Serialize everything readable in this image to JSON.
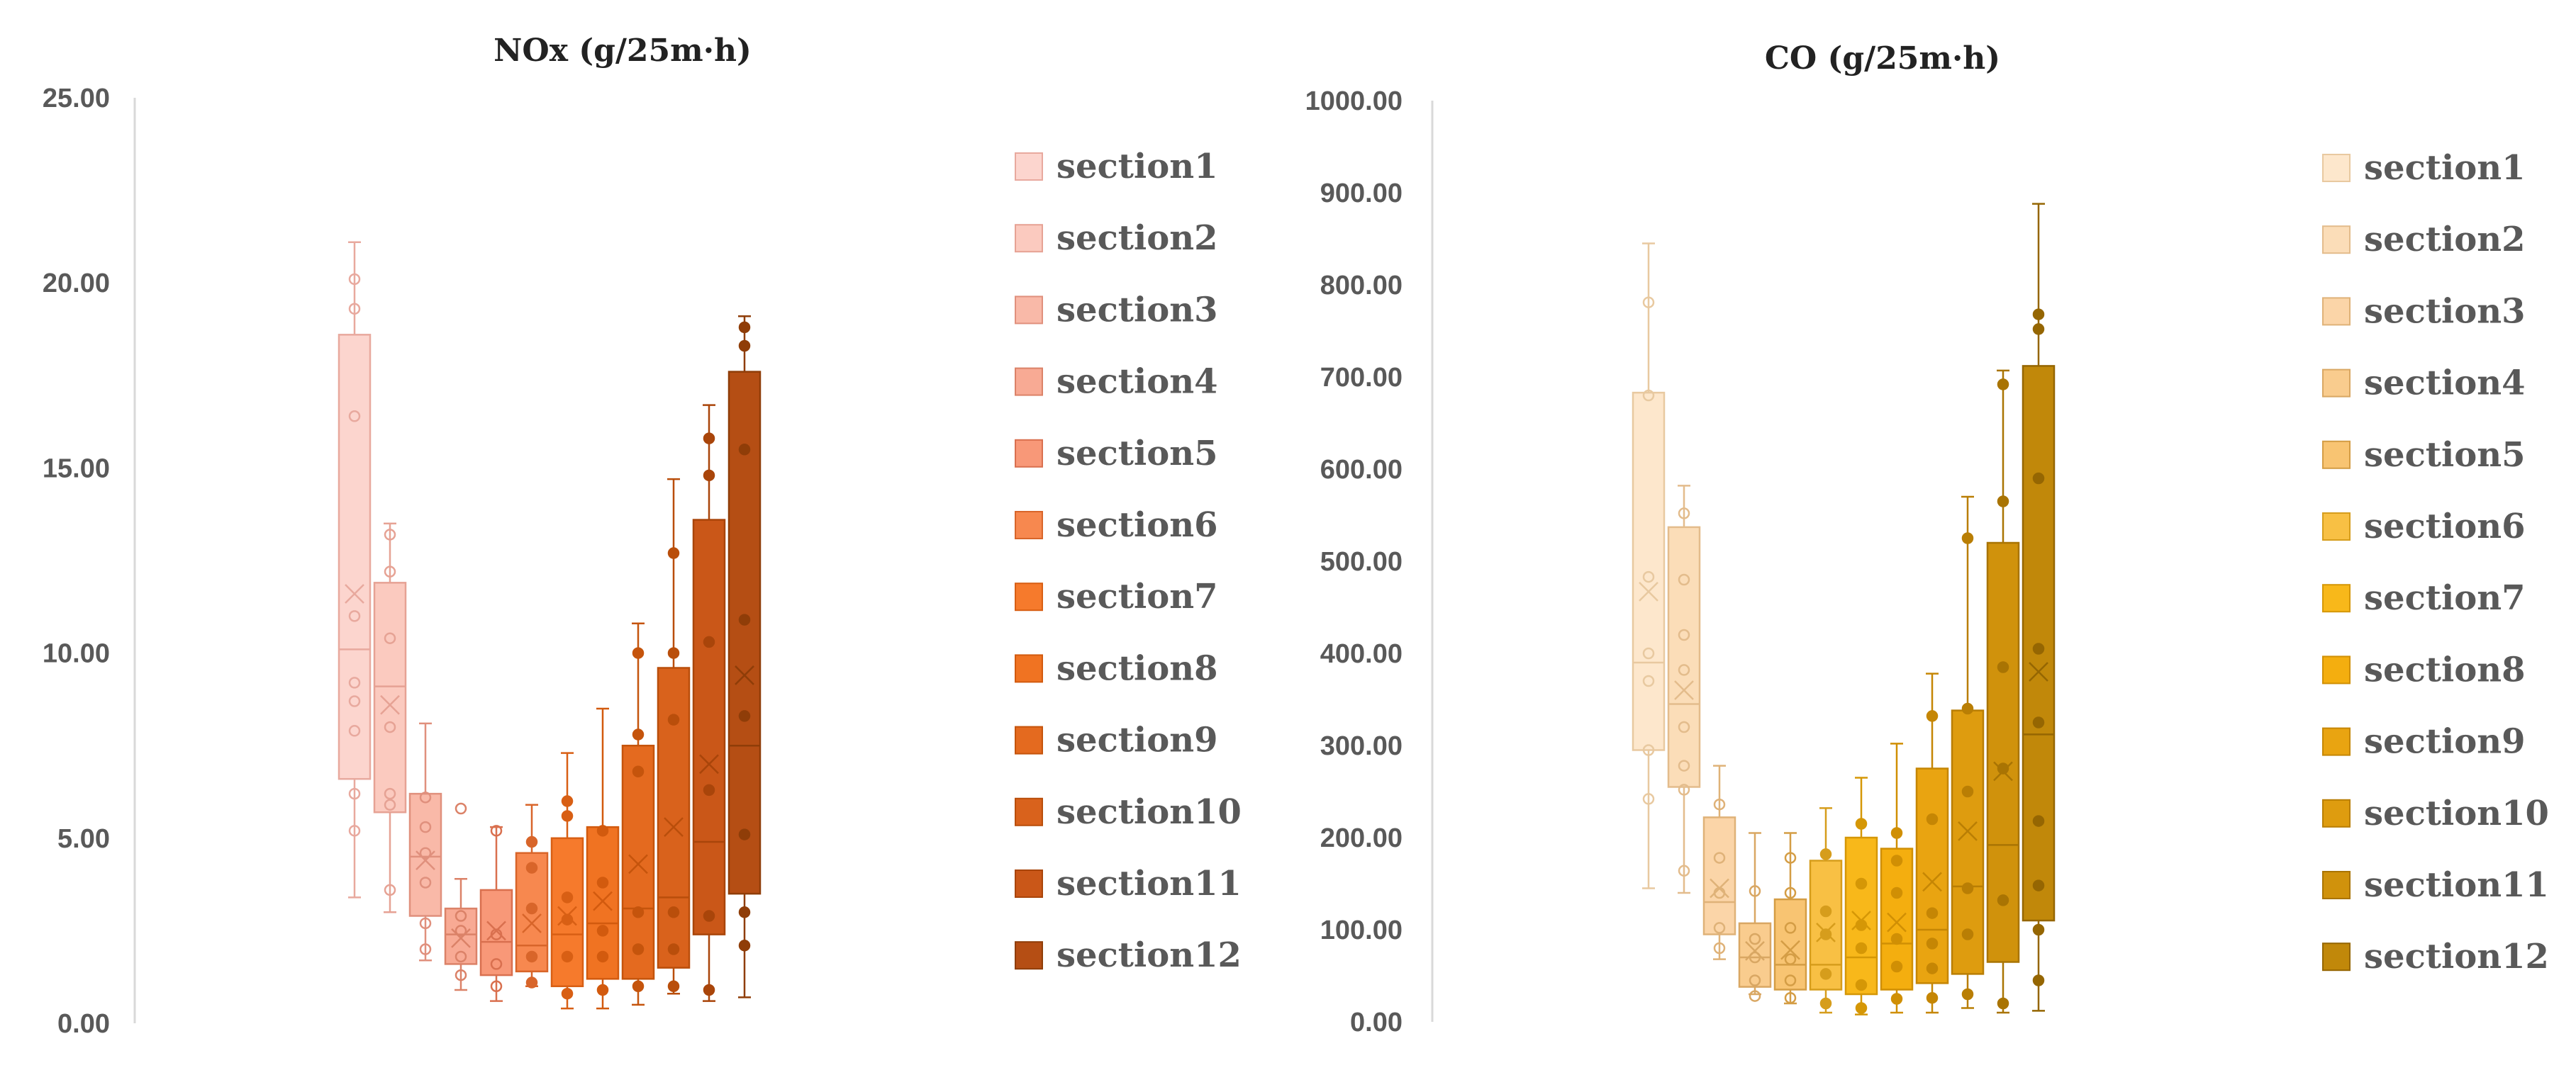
{
  "chart_data": [
    {
      "type": "box",
      "title": "NOx (g/25m·h)",
      "xlabel": "",
      "ylabel": "",
      "ylim": [
        0,
        25
      ],
      "yticks": [
        "0.00",
        "5.00",
        "10.00",
        "15.00",
        "20.00",
        "25.00"
      ],
      "legend_position": "right",
      "series": [
        {
          "name": "section1",
          "color": "#FCD5CE",
          "stroke": "#E8A99E",
          "whisker_low": 3.4,
          "q1": 6.6,
          "median": 10.1,
          "mean": 11.6,
          "q3": 18.6,
          "whisker_high": 21.1,
          "points": [
            5.2,
            6.2,
            7.9,
            8.7,
            9.2,
            11.0,
            16.4,
            19.3,
            20.1
          ],
          "filled_points": false
        },
        {
          "name": "section2",
          "color": "#FBCABF",
          "stroke": "#E6A294",
          "whisker_low": 3.0,
          "q1": 5.7,
          "median": 9.1,
          "mean": 8.6,
          "q3": 11.9,
          "whisker_high": 13.5,
          "points": [
            3.6,
            5.9,
            6.2,
            8.0,
            10.4,
            12.2,
            13.2
          ],
          "filled_points": false
        },
        {
          "name": "section3",
          "color": "#F9B9A8",
          "stroke": "#E0907D",
          "whisker_low": 1.7,
          "q1": 2.9,
          "median": 4.5,
          "mean": 4.4,
          "q3": 6.2,
          "whisker_high": 8.1,
          "points": [
            2.0,
            2.7,
            3.8,
            4.6,
            5.3,
            6.1
          ],
          "filled_points": false
        },
        {
          "name": "section4",
          "color": "#F8AA94",
          "stroke": "#DB8268",
          "whisker_low": 0.9,
          "q1": 1.6,
          "median": 2.4,
          "mean": 2.3,
          "q3": 3.1,
          "whisker_high": 3.9,
          "points": [
            1.3,
            1.8,
            2.5,
            2.9,
            5.8
          ],
          "filled_points": false
        },
        {
          "name": "section5",
          "color": "#F89878",
          "stroke": "#D9704F",
          "whisker_low": 0.6,
          "q1": 1.3,
          "median": 2.2,
          "mean": 2.5,
          "q3": 3.6,
          "whisker_high": 5.3,
          "points": [
            1.0,
            1.6,
            2.4,
            5.2
          ],
          "filled_points": false
        },
        {
          "name": "section6",
          "color": "#F7884F",
          "stroke": "#D8652A",
          "whisker_low": 1.0,
          "q1": 1.4,
          "median": 2.1,
          "mean": 2.7,
          "q3": 4.6,
          "whisker_high": 5.9,
          "points": [
            1.1,
            1.8,
            3.1,
            4.2,
            4.9
          ],
          "filled_points": true
        },
        {
          "name": "section7",
          "color": "#F67A2C",
          "stroke": "#D85F14",
          "whisker_low": 0.4,
          "q1": 1.0,
          "median": 2.4,
          "mean": 2.9,
          "q3": 5.0,
          "whisker_high": 7.3,
          "points": [
            0.8,
            1.8,
            2.8,
            3.4,
            5.6,
            6.0
          ],
          "filled_points": true
        },
        {
          "name": "section8",
          "color": "#F07322",
          "stroke": "#D25A0E",
          "whisker_low": 0.4,
          "q1": 1.2,
          "median": 2.7,
          "mean": 3.3,
          "q3": 5.3,
          "whisker_high": 8.5,
          "points": [
            0.9,
            1.8,
            2.5,
            3.8,
            5.2
          ],
          "filled_points": true
        },
        {
          "name": "section9",
          "color": "#E46A1F",
          "stroke": "#C5540C",
          "whisker_low": 0.5,
          "q1": 1.2,
          "median": 3.1,
          "mean": 4.3,
          "q3": 7.5,
          "whisker_high": 10.8,
          "points": [
            1.0,
            2.0,
            3.0,
            6.8,
            7.8,
            10.0
          ],
          "filled_points": true
        },
        {
          "name": "section10",
          "color": "#D9621C",
          "stroke": "#B94E0B",
          "whisker_low": 0.8,
          "q1": 1.5,
          "median": 3.4,
          "mean": 5.3,
          "q3": 9.6,
          "whisker_high": 14.7,
          "points": [
            1.0,
            2.0,
            3.0,
            8.2,
            10.0,
            12.7
          ],
          "filled_points": true
        },
        {
          "name": "section11",
          "color": "#CA5718",
          "stroke": "#A9450A",
          "whisker_low": 0.6,
          "q1": 2.4,
          "median": 4.9,
          "mean": 7.0,
          "q3": 13.6,
          "whisker_high": 16.7,
          "points": [
            0.9,
            2.9,
            6.3,
            10.3,
            14.8,
            15.8
          ],
          "filled_points": true
        },
        {
          "name": "section12",
          "color": "#B54E14",
          "stroke": "#8F3D08",
          "whisker_low": 0.7,
          "q1": 3.5,
          "median": 7.5,
          "mean": 9.4,
          "q3": 17.6,
          "whisker_high": 19.1,
          "points": [
            2.1,
            3.0,
            5.1,
            8.3,
            10.9,
            15.5,
            18.3,
            18.8
          ],
          "filled_points": true
        }
      ]
    },
    {
      "type": "box",
      "title": "CO (g/25m·h)",
      "xlabel": "",
      "ylabel": "",
      "ylim": [
        0,
        1000
      ],
      "yticks": [
        "0.00",
        "100.00",
        "200.00",
        "300.00",
        "400.00",
        "500.00",
        "600.00",
        "700.00",
        "800.00",
        "900.00",
        "1000.00"
      ],
      "legend_position": "right",
      "series": [
        {
          "name": "section1",
          "color": "#FDE7CC",
          "stroke": "#E8C9A0",
          "whisker_low": 145,
          "q1": 295,
          "median": 390,
          "mean": 467,
          "q3": 683,
          "whisker_high": 845,
          "points": [
            242,
            295,
            370,
            400,
            483,
            680,
            781
          ],
          "filled_points": false
        },
        {
          "name": "section2",
          "color": "#FBDDB8",
          "stroke": "#E3BC8C",
          "whisker_low": 140,
          "q1": 255,
          "median": 345,
          "mean": 360,
          "q3": 537,
          "whisker_high": 582,
          "points": [
            164,
            252,
            278,
            320,
            382,
            420,
            480,
            552
          ],
          "filled_points": false
        },
        {
          "name": "section3",
          "color": "#FBD5A8",
          "stroke": "#DFB278",
          "whisker_low": 68,
          "q1": 95,
          "median": 130,
          "mean": 145,
          "q3": 222,
          "whisker_high": 278,
          "points": [
            80,
            102,
            140,
            178,
            236
          ],
          "filled_points": false
        },
        {
          "name": "section4",
          "color": "#F9CC8E",
          "stroke": "#D9A763",
          "whisker_low": 30,
          "q1": 38,
          "median": 70,
          "mean": 77,
          "q3": 107,
          "whisker_high": 205,
          "points": [
            28,
            45,
            70,
            90,
            142
          ],
          "filled_points": false
        },
        {
          "name": "section5",
          "color": "#F8C472",
          "stroke": "#D49D45",
          "whisker_low": 20,
          "q1": 35,
          "median": 62,
          "mean": 78,
          "q3": 133,
          "whisker_high": 205,
          "points": [
            26,
            45,
            68,
            102,
            140,
            178
          ],
          "filled_points": false
        },
        {
          "name": "section6",
          "color": "#F8C044",
          "stroke": "#D69D1C",
          "whisker_low": 10,
          "q1": 35,
          "median": 62,
          "mean": 97,
          "q3": 175,
          "whisker_high": 232,
          "points": [
            20,
            52,
            95,
            120,
            182
          ],
          "filled_points": true
        },
        {
          "name": "section7",
          "color": "#F8B81A",
          "stroke": "#D59706",
          "whisker_low": 8,
          "q1": 30,
          "median": 70,
          "mean": 110,
          "q3": 200,
          "whisker_high": 265,
          "points": [
            15,
            40,
            80,
            105,
            150,
            215
          ],
          "filled_points": true
        },
        {
          "name": "section8",
          "color": "#F4AE0F",
          "stroke": "#D08F04",
          "whisker_low": 10,
          "q1": 35,
          "median": 85,
          "mean": 108,
          "q3": 188,
          "whisker_high": 302,
          "points": [
            25,
            60,
            90,
            140,
            175,
            205
          ],
          "filled_points": true
        },
        {
          "name": "section9",
          "color": "#E9A411",
          "stroke": "#C58604",
          "whisker_low": 10,
          "q1": 42,
          "median": 100,
          "mean": 152,
          "q3": 275,
          "whisker_high": 378,
          "points": [
            26,
            58,
            85,
            118,
            220,
            332
          ],
          "filled_points": true
        },
        {
          "name": "section10",
          "color": "#DE9C0F",
          "stroke": "#B97E04",
          "whisker_low": 15,
          "q1": 52,
          "median": 147,
          "mean": 207,
          "q3": 338,
          "whisker_high": 570,
          "points": [
            30,
            95,
            145,
            250,
            340,
            525
          ],
          "filled_points": true
        },
        {
          "name": "section11",
          "color": "#D0920C",
          "stroke": "#A97403",
          "whisker_low": 10,
          "q1": 65,
          "median": 192,
          "mean": 272,
          "q3": 520,
          "whisker_high": 707,
          "points": [
            20,
            132,
            275,
            385,
            565,
            692
          ],
          "filled_points": true
        },
        {
          "name": "section12",
          "color": "#C1880A",
          "stroke": "#956602",
          "whisker_low": 12,
          "q1": 110,
          "median": 312,
          "mean": 380,
          "q3": 712,
          "whisker_high": 888,
          "points": [
            45,
            100,
            148,
            218,
            325,
            405,
            590,
            752,
            768
          ],
          "filled_points": true
        }
      ]
    }
  ]
}
